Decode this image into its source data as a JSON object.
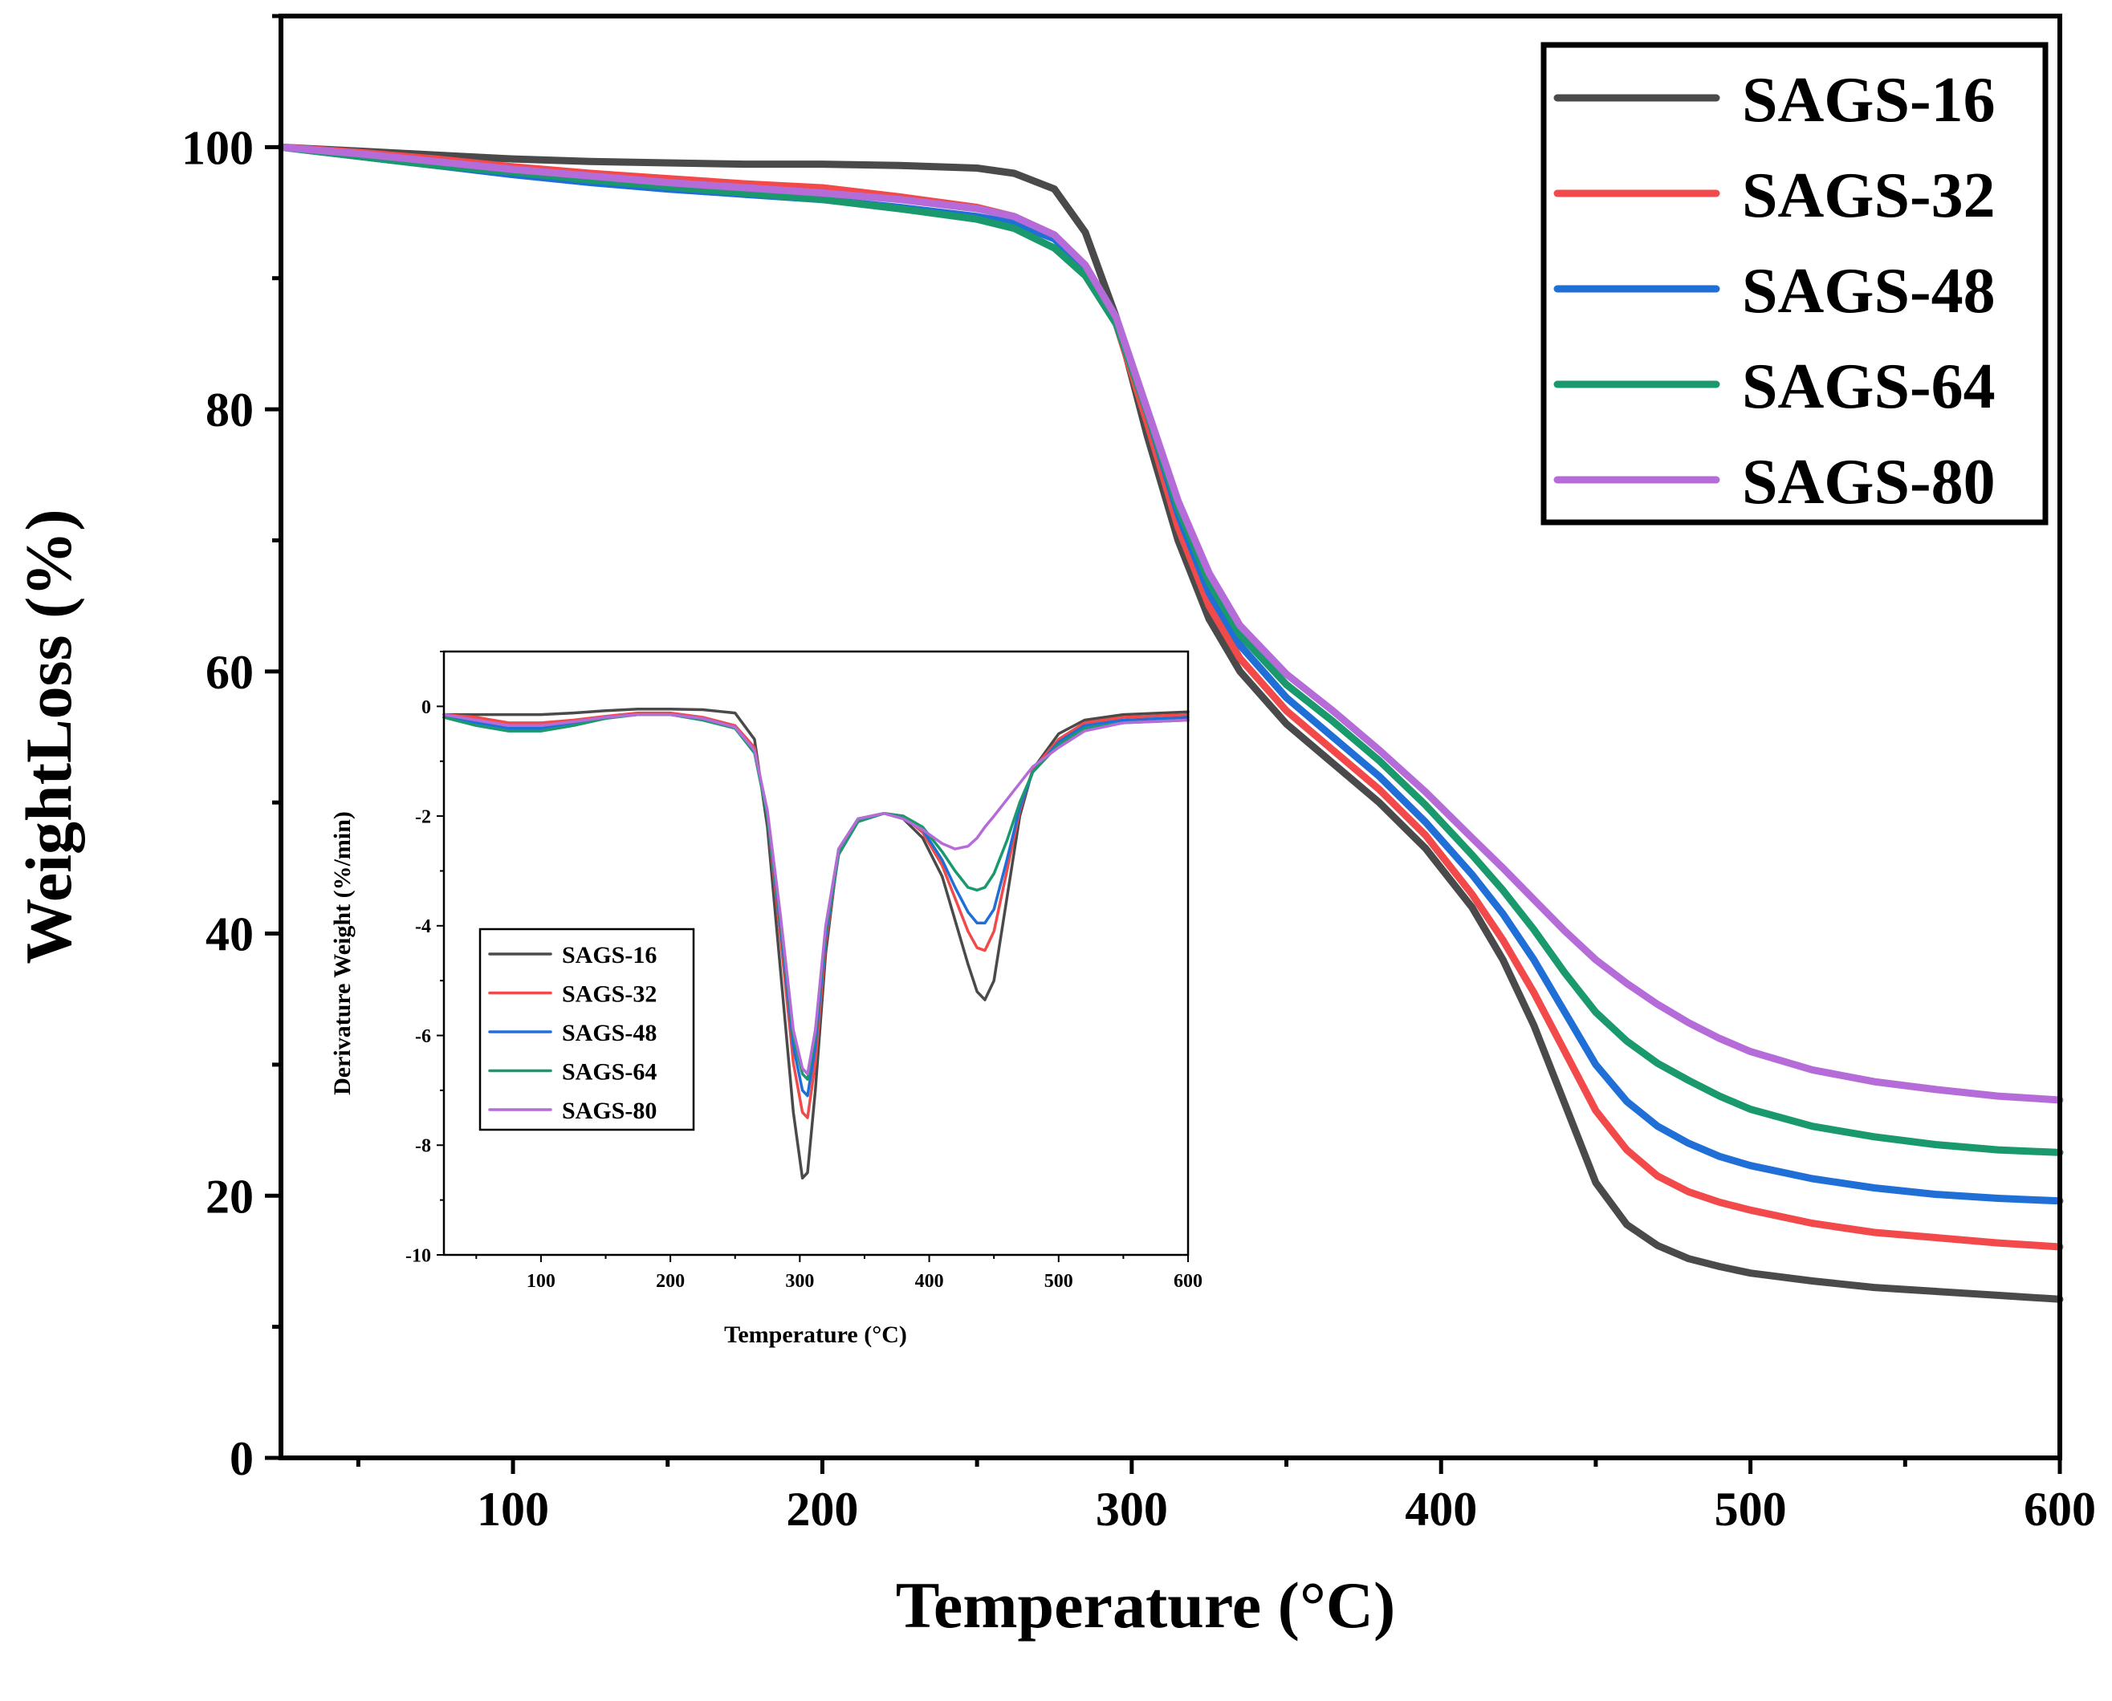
{
  "chart_data": [
    {
      "id": "main",
      "type": "line",
      "xlabel": "Temperature (°C)",
      "ylabel": "WeightLoss (%)",
      "xlim": [
        25,
        600
      ],
      "ylim": [
        0,
        110
      ],
      "xticks": [
        100,
        200,
        300,
        400,
        500,
        600
      ],
      "yticks": [
        0,
        20,
        40,
        60,
        80,
        100
      ],
      "grid": false,
      "legend": "top-right",
      "series": [
        {
          "name": "SAGS-16",
          "color": "#4a4a4a",
          "x": [
            25,
            50,
            75,
            100,
            125,
            150,
            175,
            200,
            225,
            250,
            262,
            275,
            285,
            295,
            305,
            315,
            325,
            335,
            350,
            365,
            380,
            395,
            410,
            420,
            430,
            440,
            450,
            460,
            470,
            480,
            490,
            500,
            520,
            540,
            560,
            580,
            600
          ],
          "y": [
            100,
            99.7,
            99.4,
            99.1,
            98.9,
            98.8,
            98.7,
            98.7,
            98.6,
            98.4,
            98.0,
            96.8,
            93.5,
            87,
            78,
            70,
            64,
            60,
            56,
            53,
            50,
            46.5,
            42,
            38,
            33,
            27,
            21,
            17.8,
            16.2,
            15.2,
            14.6,
            14.1,
            13.5,
            13.0,
            12.7,
            12.4,
            12.1
          ]
        },
        {
          "name": "SAGS-32",
          "color": "#f24a4a",
          "x": [
            25,
            50,
            75,
            100,
            125,
            150,
            175,
            200,
            225,
            250,
            262,
            275,
            285,
            295,
            305,
            315,
            325,
            335,
            350,
            365,
            380,
            395,
            410,
            420,
            430,
            440,
            450,
            460,
            470,
            480,
            490,
            500,
            520,
            540,
            560,
            580,
            600
          ],
          "y": [
            100,
            99.6,
            99.1,
            98.5,
            98.0,
            97.6,
            97.2,
            96.9,
            96.2,
            95.4,
            94.7,
            93.3,
            90.8,
            86.5,
            79,
            71,
            65,
            61,
            57,
            54,
            51,
            47.5,
            43,
            39.5,
            35.5,
            31,
            26.5,
            23.5,
            21.5,
            20.3,
            19.5,
            18.9,
            17.9,
            17.2,
            16.8,
            16.4,
            16.1
          ]
        },
        {
          "name": "SAGS-48",
          "color": "#1f6fd6",
          "x": [
            25,
            50,
            75,
            100,
            125,
            150,
            175,
            200,
            225,
            250,
            262,
            275,
            285,
            295,
            305,
            315,
            325,
            335,
            350,
            365,
            380,
            395,
            410,
            420,
            430,
            440,
            450,
            460,
            470,
            480,
            490,
            500,
            520,
            540,
            560,
            580,
            600
          ],
          "y": [
            100,
            99.3,
            98.6,
            97.9,
            97.3,
            96.8,
            96.4,
            96.0,
            95.4,
            94.7,
            94.2,
            93.0,
            90.8,
            86.8,
            79.8,
            72,
            66,
            62,
            58,
            55,
            52,
            48.5,
            44.5,
            41.5,
            38,
            34,
            30,
            27.2,
            25.3,
            24,
            23,
            22.3,
            21.3,
            20.6,
            20.1,
            19.8,
            19.6
          ]
        },
        {
          "name": "SAGS-64",
          "color": "#1a9a6c",
          "x": [
            25,
            50,
            75,
            100,
            125,
            150,
            175,
            200,
            225,
            250,
            262,
            275,
            285,
            295,
            305,
            315,
            325,
            335,
            350,
            365,
            380,
            395,
            410,
            420,
            430,
            440,
            450,
            460,
            470,
            480,
            490,
            500,
            520,
            540,
            560,
            580,
            600
          ],
          "y": [
            100,
            99.3,
            98.6,
            98.1,
            97.5,
            97.0,
            96.5,
            96.0,
            95.3,
            94.5,
            93.8,
            92.3,
            90.2,
            86.5,
            79.8,
            72.5,
            66.8,
            62.8,
            59,
            56.2,
            53.2,
            49.8,
            46,
            43.3,
            40.3,
            37,
            34,
            31.8,
            30.1,
            28.8,
            27.6,
            26.6,
            25.3,
            24.5,
            23.9,
            23.5,
            23.3
          ]
        },
        {
          "name": "SAGS-80",
          "color": "#b56cd8",
          "x": [
            25,
            50,
            75,
            100,
            125,
            150,
            175,
            200,
            225,
            250,
            262,
            275,
            285,
            295,
            305,
            315,
            325,
            335,
            350,
            365,
            380,
            395,
            410,
            420,
            430,
            440,
            450,
            460,
            470,
            480,
            490,
            500,
            520,
            540,
            560,
            580,
            600
          ],
          "y": [
            100,
            99.5,
            98.9,
            98.3,
            97.8,
            97.3,
            96.9,
            96.5,
            96.0,
            95.3,
            94.7,
            93.3,
            91.0,
            87,
            80,
            73,
            67.5,
            63.5,
            59.8,
            57,
            54,
            50.8,
            47.3,
            45,
            42.6,
            40.2,
            38,
            36.2,
            34.6,
            33.2,
            32,
            31,
            29.6,
            28.7,
            28.1,
            27.6,
            27.3
          ]
        }
      ]
    },
    {
      "id": "inset",
      "type": "line",
      "xlabel": "Temperature (°C)",
      "ylabel": "Derivature Weight (%/min)",
      "xlim": [
        25,
        600
      ],
      "ylim": [
        -10,
        1
      ],
      "xticks": [
        100,
        200,
        300,
        400,
        500,
        600
      ],
      "yticks": [
        0,
        -2,
        -4,
        -6,
        -8,
        -10
      ],
      "grid": false,
      "legend": "bottom-left",
      "series": [
        {
          "name": "SAGS-16",
          "color": "#4a4a4a",
          "x": [
            25,
            50,
            75,
            100,
            125,
            150,
            175,
            200,
            225,
            250,
            265,
            275,
            285,
            295,
            302,
            306,
            312,
            320,
            330,
            345,
            365,
            380,
            395,
            410,
            420,
            430,
            437,
            443,
            450,
            460,
            470,
            480,
            500,
            520,
            550,
            600
          ],
          "y": [
            -0.15,
            -0.15,
            -0.15,
            -0.15,
            -0.12,
            -0.08,
            -0.05,
            -0.05,
            -0.06,
            -0.12,
            -0.6,
            -2.2,
            -4.8,
            -7.4,
            -8.6,
            -8.5,
            -7.0,
            -4.5,
            -2.6,
            -2.05,
            -1.95,
            -2.05,
            -2.4,
            -3.1,
            -3.9,
            -4.7,
            -5.2,
            -5.35,
            -5.0,
            -3.5,
            -2.0,
            -1.15,
            -0.5,
            -0.25,
            -0.15,
            -0.1
          ]
        },
        {
          "name": "SAGS-32",
          "color": "#f24a4a",
          "x": [
            25,
            50,
            75,
            100,
            125,
            150,
            175,
            200,
            225,
            250,
            265,
            275,
            285,
            295,
            302,
            306,
            312,
            320,
            330,
            345,
            365,
            380,
            395,
            410,
            420,
            430,
            437,
            443,
            450,
            460,
            470,
            480,
            500,
            520,
            550,
            600
          ],
          "y": [
            -0.15,
            -0.2,
            -0.3,
            -0.3,
            -0.25,
            -0.18,
            -0.12,
            -0.12,
            -0.2,
            -0.35,
            -0.75,
            -2.0,
            -4.2,
            -6.5,
            -7.4,
            -7.5,
            -6.5,
            -4.3,
            -2.7,
            -2.1,
            -1.95,
            -2.0,
            -2.3,
            -2.9,
            -3.5,
            -4.1,
            -4.4,
            -4.45,
            -4.1,
            -3.0,
            -1.9,
            -1.15,
            -0.6,
            -0.3,
            -0.2,
            -0.15
          ]
        },
        {
          "name": "SAGS-48",
          "color": "#1f6fd6",
          "x": [
            25,
            50,
            75,
            100,
            125,
            150,
            175,
            200,
            225,
            250,
            265,
            275,
            285,
            295,
            302,
            306,
            312,
            320,
            330,
            345,
            365,
            380,
            395,
            410,
            420,
            430,
            437,
            443,
            450,
            460,
            470,
            480,
            500,
            520,
            550,
            600
          ],
          "y": [
            -0.2,
            -0.3,
            -0.4,
            -0.4,
            -0.3,
            -0.2,
            -0.15,
            -0.15,
            -0.22,
            -0.38,
            -0.8,
            -2.0,
            -4.0,
            -6.2,
            -7.0,
            -7.1,
            -6.2,
            -4.2,
            -2.7,
            -2.1,
            -1.95,
            -2.0,
            -2.25,
            -2.8,
            -3.3,
            -3.75,
            -3.95,
            -3.95,
            -3.7,
            -2.8,
            -1.85,
            -1.2,
            -0.65,
            -0.35,
            -0.25,
            -0.2
          ]
        },
        {
          "name": "SAGS-64",
          "color": "#1a9a6c",
          "x": [
            25,
            50,
            75,
            100,
            125,
            150,
            175,
            200,
            225,
            250,
            265,
            275,
            285,
            295,
            302,
            306,
            312,
            320,
            330,
            345,
            365,
            380,
            395,
            410,
            420,
            430,
            437,
            443,
            450,
            460,
            470,
            480,
            500,
            520,
            550,
            600
          ],
          "y": [
            -0.2,
            -0.35,
            -0.45,
            -0.45,
            -0.35,
            -0.22,
            -0.15,
            -0.15,
            -0.25,
            -0.4,
            -0.85,
            -2.0,
            -3.9,
            -6.0,
            -6.7,
            -6.8,
            -6.0,
            -4.1,
            -2.7,
            -2.1,
            -1.95,
            -2.0,
            -2.2,
            -2.65,
            -3.0,
            -3.3,
            -3.35,
            -3.3,
            -3.05,
            -2.45,
            -1.75,
            -1.2,
            -0.7,
            -0.4,
            -0.3,
            -0.25
          ]
        },
        {
          "name": "SAGS-80",
          "color": "#b56cd8",
          "x": [
            25,
            50,
            75,
            100,
            125,
            150,
            175,
            200,
            225,
            250,
            265,
            275,
            285,
            295,
            302,
            306,
            312,
            320,
            330,
            345,
            365,
            380,
            395,
            410,
            420,
            430,
            437,
            443,
            450,
            460,
            470,
            480,
            500,
            520,
            550,
            600
          ],
          "y": [
            -0.15,
            -0.25,
            -0.35,
            -0.35,
            -0.28,
            -0.2,
            -0.15,
            -0.15,
            -0.22,
            -0.38,
            -0.8,
            -1.9,
            -3.8,
            -5.9,
            -6.6,
            -6.7,
            -5.9,
            -4.0,
            -2.6,
            -2.05,
            -1.95,
            -2.05,
            -2.25,
            -2.5,
            -2.6,
            -2.55,
            -2.4,
            -2.2,
            -2.0,
            -1.7,
            -1.4,
            -1.1,
            -0.75,
            -0.45,
            -0.3,
            -0.25
          ]
        }
      ]
    }
  ]
}
